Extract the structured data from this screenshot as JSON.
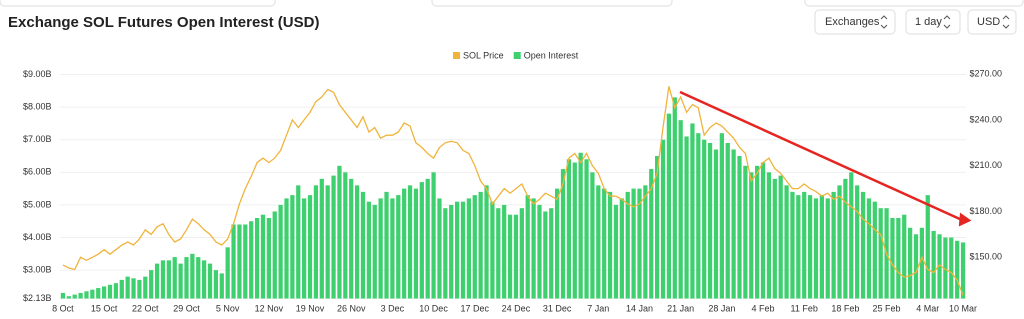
{
  "header": {
    "title": "Exchange SOL Futures Open Interest (USD)",
    "controls": [
      "Exchanges",
      "1 day",
      "USD"
    ]
  },
  "chart_data": {
    "type": "bar",
    "categories": [
      "8 Oct",
      null,
      null,
      null,
      null,
      null,
      null,
      "15 Oct",
      null,
      null,
      null,
      null,
      null,
      null,
      "22 Oct",
      null,
      null,
      null,
      null,
      null,
      null,
      "29 Oct",
      null,
      null,
      null,
      null,
      null,
      null,
      "5 Nov",
      null,
      null,
      null,
      null,
      null,
      null,
      "12 Nov",
      null,
      null,
      null,
      null,
      null,
      null,
      "19 Nov",
      null,
      null,
      null,
      null,
      null,
      null,
      "26 Nov",
      null,
      null,
      null,
      null,
      null,
      null,
      "3 Dec",
      null,
      null,
      null,
      null,
      null,
      null,
      "10 Dec",
      null,
      null,
      null,
      null,
      null,
      null,
      "17 Dec",
      null,
      null,
      null,
      null,
      null,
      null,
      "24 Dec",
      null,
      null,
      null,
      null,
      null,
      null,
      "31 Dec",
      null,
      null,
      null,
      null,
      null,
      null,
      "7 Jan",
      null,
      null,
      null,
      null,
      null,
      null,
      "14 Jan",
      null,
      null,
      null,
      null,
      null,
      null,
      "21 Jan",
      null,
      null,
      null,
      null,
      null,
      null,
      "28 Jan",
      null,
      null,
      null,
      null,
      null,
      null,
      "4 Feb",
      null,
      null,
      null,
      null,
      null,
      null,
      "11 Feb",
      null,
      null,
      null,
      null,
      null,
      null,
      "18 Feb",
      null,
      null,
      null,
      null,
      null,
      null,
      "25 Feb",
      null,
      null,
      null,
      null,
      null,
      null,
      "4 Mar",
      null,
      null,
      null,
      null,
      null,
      "10 Mar"
    ],
    "series": [
      {
        "name": "SOL Price",
        "type": "line",
        "axis": "y2",
        "color": "#f0b43c",
        "values": [
          145,
          143,
          142,
          150,
          148,
          150,
          152,
          155,
          152,
          155,
          158,
          160,
          158,
          162,
          168,
          165,
          170,
          172,
          165,
          160,
          162,
          168,
          175,
          172,
          168,
          165,
          160,
          158,
          162,
          172,
          185,
          195,
          203,
          212,
          215,
          212,
          215,
          220,
          230,
          240,
          235,
          240,
          245,
          252,
          255,
          260,
          258,
          250,
          245,
          240,
          235,
          242,
          232,
          235,
          228,
          230,
          230,
          232,
          238,
          236,
          225,
          222,
          218,
          215,
          222,
          225,
          226,
          225,
          220,
          218,
          210,
          200,
          195,
          185,
          190,
          195,
          192,
          195,
          198,
          190,
          185,
          188,
          192,
          190,
          188,
          198,
          215,
          218,
          212,
          218,
          210,
          205,
          195,
          190,
          190,
          188,
          185,
          183,
          185,
          190,
          195,
          205,
          235,
          262,
          248,
          255,
          245,
          250,
          248,
          230,
          235,
          238,
          236,
          232,
          228,
          222,
          218,
          200,
          205,
          212,
          215,
          208,
          205,
          200,
          195,
          195,
          198,
          195,
          193,
          190,
          192,
          188,
          190,
          186,
          183,
          180,
          175,
          172,
          168,
          165,
          152,
          145,
          140,
          137,
          138,
          140,
          150,
          142,
          140,
          145,
          142,
          140,
          135,
          125
        ]
      },
      {
        "name": "Open Interest",
        "type": "bar",
        "color": "#3ecf6e",
        "values": [
          2.3,
          2.2,
          2.25,
          2.3,
          2.35,
          2.4,
          2.45,
          2.5,
          2.55,
          2.6,
          2.7,
          2.8,
          2.75,
          2.7,
          2.8,
          3.0,
          3.2,
          3.3,
          3.3,
          3.4,
          3.2,
          3.4,
          3.5,
          3.4,
          3.3,
          3.2,
          3.0,
          2.9,
          3.7,
          4.4,
          4.4,
          4.4,
          4.5,
          4.6,
          4.7,
          4.6,
          4.8,
          5.0,
          5.2,
          5.3,
          5.6,
          5.2,
          5.3,
          5.6,
          5.8,
          5.6,
          5.9,
          6.2,
          6.0,
          5.8,
          5.6,
          5.4,
          5.1,
          5.0,
          5.2,
          5.4,
          5.2,
          5.3,
          5.5,
          5.6,
          5.5,
          5.7,
          5.8,
          6.0,
          5.2,
          4.9,
          5.0,
          5.1,
          5.1,
          5.2,
          5.3,
          5.4,
          5.6,
          5.1,
          4.9,
          5.0,
          4.7,
          4.7,
          4.9,
          5.3,
          5.2,
          5.0,
          4.8,
          4.9,
          5.5,
          6.1,
          6.4,
          6.3,
          6.6,
          6.4,
          6.0,
          5.6,
          5.5,
          5.4,
          5.0,
          5.2,
          5.4,
          5.5,
          5.5,
          5.6,
          6.1,
          6.5,
          7.0,
          7.8,
          8.3,
          7.6,
          7.1,
          7.5,
          7.2,
          7.0,
          6.9,
          6.7,
          7.2,
          6.9,
          6.7,
          6.5,
          6.2,
          6.0,
          6.2,
          6.3,
          6.0,
          5.8,
          5.9,
          5.6,
          5.4,
          5.3,
          5.4,
          5.3,
          5.2,
          5.3,
          5.2,
          5.4,
          5.6,
          5.8,
          6.0,
          5.6,
          5.4,
          5.2,
          5.1,
          4.9,
          4.9,
          4.6,
          4.6,
          4.7,
          4.3,
          4.1,
          4.3,
          5.3,
          4.2,
          4.1,
          4.0,
          4.0,
          3.9,
          3.85
        ]
      }
    ],
    "ylim": [
      2.13,
      9.2
    ],
    "yticks": [
      {
        "value": 2.13,
        "label": "$2.13B"
      },
      {
        "value": 3,
        "label": "$3.00B"
      },
      {
        "value": 4,
        "label": "$4.00B"
      },
      {
        "value": 5,
        "label": "$5.00B"
      },
      {
        "value": 6,
        "label": "$6.00B"
      },
      {
        "value": 7,
        "label": "$7.00B"
      },
      {
        "value": 8,
        "label": "$8.00B"
      },
      {
        "value": 9,
        "label": "$9.00B"
      }
    ],
    "y2lim": [
      123,
      274
    ],
    "y2ticks": [
      {
        "value": 150,
        "label": "$150.00"
      },
      {
        "value": 180,
        "label": "$180.00"
      },
      {
        "value": 210,
        "label": "$210.00"
      },
      {
        "value": 240,
        "label": "$240.00"
      },
      {
        "value": 270,
        "label": "$270.00"
      }
    ],
    "grid": true
  }
}
